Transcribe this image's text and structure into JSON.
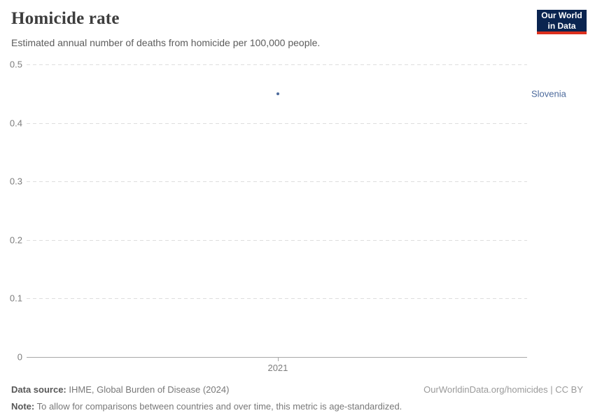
{
  "header": {
    "title": "Homicide rate",
    "subtitle": "Estimated annual number of deaths from homicide per 100,000 people."
  },
  "logo": {
    "line1": "Our World",
    "line2": "in Data",
    "bg_color": "#0A2450",
    "bar_color": "#DC2F1E"
  },
  "chart_data": {
    "type": "scatter",
    "title": "Homicide rate",
    "subtitle": "Estimated annual number of deaths from homicide per 100,000 people.",
    "xlabel": "",
    "ylabel": "",
    "ylim": [
      0,
      0.5
    ],
    "yticks": [
      0,
      0.1,
      0.2,
      0.3,
      0.4,
      0.5
    ],
    "ytick_labels": [
      "0",
      "0.1",
      "0.2",
      "0.3",
      "0.4",
      "0.5"
    ],
    "xticks": [
      2021
    ],
    "xtick_labels": [
      "2021"
    ],
    "grid": "horizontal-dashed",
    "legend_position": "right-of-point",
    "x_tick_fraction": 0.502,
    "series": [
      {
        "name": "Slovenia",
        "color": "#4C6A9C",
        "x": [
          2021
        ],
        "values": [
          0.45
        ]
      }
    ],
    "colors": {
      "gridline": "#DEDEDE",
      "axis": "#A8A8A8",
      "tick_label": "#7D7D7D"
    }
  },
  "footer": {
    "source_label": "Data source:",
    "source_text": "IHME, Global Burden of Disease (2024)",
    "note_label": "Note:",
    "note_text": "To allow for comparisons between countries and over time, this metric is age-standardized.",
    "link_text": "OurWorldinData.org/homicides | CC BY"
  }
}
